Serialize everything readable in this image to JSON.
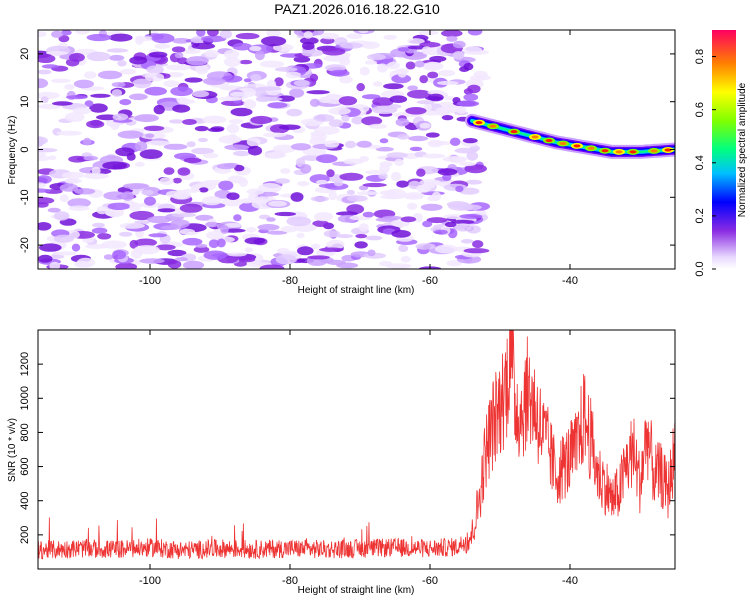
{
  "title": "PAZ1.2026.016.18.22.G10",
  "spectrogram": {
    "xlabel": "Height of straight line (km)",
    "ylabel": "Frequency (Hz)",
    "xlim": [
      -116,
      -25
    ],
    "ylim": [
      -25,
      25
    ],
    "xticks": [
      -100,
      -80,
      -60,
      -40
    ],
    "yticks": [
      -20,
      -10,
      0,
      10,
      20
    ],
    "noise_region_end_km": -54,
    "signal_track": {
      "height_km": [
        -54,
        -50,
        -46,
        -42,
        -38,
        -34,
        -30,
        -25
      ],
      "frequency_hz": [
        6,
        4.5,
        3,
        1.5,
        0.5,
        -0.5,
        -0.5,
        0
      ]
    }
  },
  "colorbar": {
    "label": "Normalized spectral amplitude",
    "range": [
      0,
      0.9
    ],
    "ticks": [
      "0.0",
      "0.2",
      "0.4",
      "0.6",
      "0.8"
    ],
    "tick_values": [
      0.0,
      0.2,
      0.4,
      0.6,
      0.8
    ]
  },
  "chart_data": {
    "type": "line",
    "xlabel": "Height of straight line (km)",
    "ylabel": "SNR (10 * v/v)",
    "xlim": [
      -116,
      -25
    ],
    "ylim": [
      0,
      1400
    ],
    "xticks": [
      -100,
      -80,
      -60,
      -40
    ],
    "yticks": [
      200,
      400,
      600,
      800,
      1000,
      1200
    ],
    "color": "#ee3333",
    "x": [
      -116,
      -110,
      -105,
      -100,
      -95,
      -90,
      -85,
      -80,
      -75,
      -70,
      -65,
      -60,
      -56,
      -54,
      -53,
      -52,
      -51,
      -50,
      -49,
      -48.5,
      -48,
      -47,
      -46,
      -45,
      -44,
      -43,
      -42,
      -41,
      -40,
      -39,
      -38,
      -37,
      -36,
      -35,
      -34,
      -33,
      -32,
      -31,
      -30,
      -29,
      -28,
      -27,
      -26,
      -25
    ],
    "y": [
      110,
      120,
      115,
      125,
      110,
      120,
      115,
      120,
      115,
      120,
      125,
      120,
      130,
      200,
      400,
      700,
      850,
      950,
      1100,
      1380,
      1000,
      900,
      1050,
      950,
      800,
      700,
      550,
      600,
      650,
      700,
      900,
      750,
      550,
      500,
      400,
      450,
      600,
      700,
      500,
      800,
      550,
      550,
      450,
      700
    ]
  }
}
